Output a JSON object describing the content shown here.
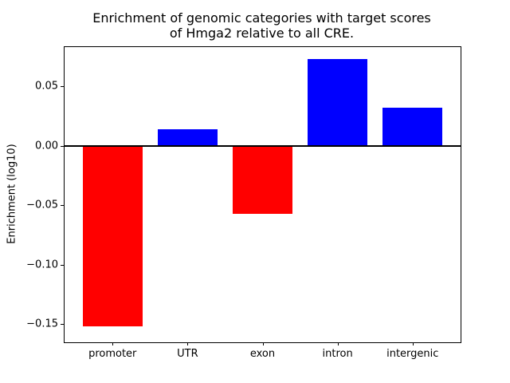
{
  "chart_data": {
    "type": "bar",
    "title": "Enrichment of genomic categories with target scores\nof Hmga2 relative to all CRE.",
    "xlabel": "",
    "ylabel": "Enrichment (log10)",
    "categories": [
      "promoter",
      "UTR",
      "exon",
      "intron",
      "intergenic"
    ],
    "values": [
      -0.152,
      0.014,
      -0.057,
      0.073,
      0.032
    ],
    "bar_colors": [
      "#ff0000",
      "#0000ff",
      "#ff0000",
      "#0000ff",
      "#0000ff"
    ],
    "positive_color": "#0000ff",
    "negative_color": "#ff0000",
    "yticks": [
      {
        "value": 0.05,
        "label": "0.05"
      },
      {
        "value": 0.0,
        "label": "0.00"
      },
      {
        "value": -0.05,
        "label": "−0.05"
      },
      {
        "value": -0.1,
        "label": "−0.10"
      },
      {
        "value": -0.15,
        "label": "−0.15"
      }
    ],
    "ylim": [
      -0.1655,
      0.0831
    ],
    "xlim": [
      -0.64,
      4.64
    ],
    "bar_width": 0.8,
    "zero_line_color": "#000000",
    "grid": false,
    "legend_position": "none",
    "background_color": "#ffffff"
  }
}
